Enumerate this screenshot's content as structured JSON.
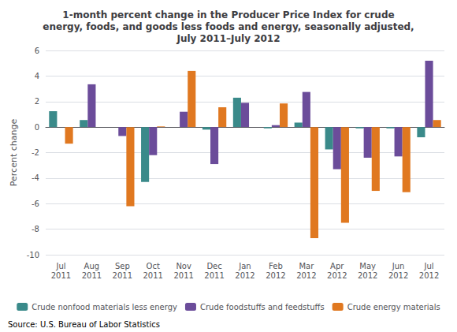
{
  "chart_data": {
    "type": "bar",
    "title": "1-month percent change in the Producer Price Index for crude\nenergy, foods, and goods less foods and energy, seasonally adjusted,\nJuly 2011–July 2012",
    "ylabel": "Percent change",
    "source": "Source: U.S. Bureau of Labor Statistics",
    "categories": [
      "Jul\n2011",
      "Aug\n2011",
      "Sep\n2011",
      "Oct\n2011",
      "Nov\n2011",
      "Dec\n2011",
      "Jan\n2012",
      "Feb\n2012",
      "Mar\n2012",
      "Apr\n2012",
      "May\n2012",
      "Jun\n2012",
      "Jul\n2012"
    ],
    "series": [
      {
        "name": "Crude nonfood materials less energy",
        "color": "#3a8a8a",
        "values": [
          1.25,
          0.55,
          0.0,
          -4.3,
          0.0,
          -0.2,
          2.3,
          -0.1,
          0.35,
          -1.75,
          -0.1,
          -0.1,
          -0.8
        ]
      },
      {
        "name": "Crude foodstuffs and feedstuffs",
        "color": "#6b4c9a",
        "values": [
          0.0,
          3.35,
          -0.7,
          -2.2,
          1.2,
          -2.9,
          1.9,
          0.15,
          2.75,
          -3.3,
          -2.4,
          -2.3,
          5.2
        ]
      },
      {
        "name": "Crude energy materials",
        "color": "#e07820",
        "values": [
          -1.3,
          0.0,
          -6.2,
          0.05,
          4.4,
          1.55,
          0.0,
          1.85,
          -8.7,
          -7.5,
          -5.0,
          -5.1,
          0.55
        ]
      }
    ],
    "ylim": [
      -10,
      6
    ],
    "yticks": [
      -10,
      -8,
      -6,
      -4,
      -2,
      0,
      2,
      4,
      6
    ],
    "grid": true,
    "legend": "bottom"
  }
}
